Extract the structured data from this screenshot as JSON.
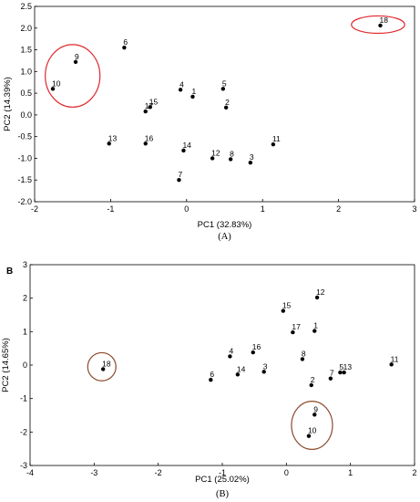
{
  "chart_data": [
    {
      "type": "scatter",
      "panel_letter": "",
      "caption": "(A)",
      "xlabel": "PC1 (32.83%)",
      "ylabel": "PC2 (14.39%)",
      "xlim": [
        -2,
        3
      ],
      "ylim": [
        -2.0,
        2.5
      ],
      "xticks": [
        -2,
        -1,
        0,
        1,
        2,
        3
      ],
      "yticks": [
        -2.0,
        -1.5,
        -1.0,
        -0.5,
        0.0,
        0.5,
        1.0,
        1.5,
        2.0,
        2.5
      ],
      "ytick_labels": [
        "-2.0",
        "-1.5",
        "-1.0",
        "-0.5",
        "0.0",
        "0.5",
        "1.0",
        "1.5",
        "2.0",
        "2.5"
      ],
      "grid": false,
      "marker_color": "#000000",
      "highlight_color": "#e0272c",
      "points": [
        {
          "label": "1",
          "x": 0.08,
          "y": 0.42
        },
        {
          "label": "2",
          "x": 0.52,
          "y": 0.17
        },
        {
          "label": "3",
          "x": 0.84,
          "y": -1.1
        },
        {
          "label": "4",
          "x": -0.08,
          "y": 0.58
        },
        {
          "label": "5",
          "x": 0.48,
          "y": 0.6
        },
        {
          "label": "6",
          "x": -0.82,
          "y": 1.55
        },
        {
          "label": "7",
          "x": -0.1,
          "y": -1.5
        },
        {
          "label": "8",
          "x": 0.58,
          "y": -1.02
        },
        {
          "label": "9",
          "x": -1.46,
          "y": 1.22
        },
        {
          "label": "10",
          "x": -1.76,
          "y": 0.6
        },
        {
          "label": "11",
          "x": 1.14,
          "y": -0.68
        },
        {
          "label": "12",
          "x": 0.34,
          "y": -1.0
        },
        {
          "label": "13",
          "x": -1.02,
          "y": -0.66
        },
        {
          "label": "14",
          "x": -0.04,
          "y": -0.82
        },
        {
          "label": "15",
          "x": -0.48,
          "y": 0.18
        },
        {
          "label": "16",
          "x": -0.54,
          "y": -0.66
        },
        {
          "label": "17",
          "x": -0.54,
          "y": 0.08
        },
        {
          "label": "18",
          "x": 2.55,
          "y": 2.06
        }
      ],
      "highlights": [
        {
          "cx": -1.5,
          "cy": 0.9,
          "rx": 0.36,
          "ry": 0.72
        },
        {
          "cx": 2.52,
          "cy": 2.08,
          "rx": 0.35,
          "ry": 0.2
        }
      ]
    },
    {
      "type": "scatter",
      "panel_letter": "B",
      "caption": "(B)",
      "xlabel": "PC1 (25.02%)",
      "ylabel": "PC2 (14.65%)",
      "xlim": [
        -4,
        2
      ],
      "ylim": [
        -3,
        3
      ],
      "xticks": [
        -4,
        -3,
        -2,
        -1,
        0,
        1,
        2
      ],
      "yticks": [
        -3,
        -2,
        -1,
        0,
        1,
        2,
        3
      ],
      "ytick_labels": [
        "-3",
        "-2",
        "-1",
        "0",
        "1",
        "2",
        "3"
      ],
      "grid": false,
      "marker_color": "#000000",
      "highlight_color": "#8b4a2b",
      "points": [
        {
          "label": "1",
          "x": 0.44,
          "y": 1.02
        },
        {
          "label": "2",
          "x": 0.39,
          "y": -0.6
        },
        {
          "label": "3",
          "x": -0.35,
          "y": -0.2
        },
        {
          "label": "4",
          "x": -0.88,
          "y": 0.26
        },
        {
          "label": "5",
          "x": 0.84,
          "y": -0.22
        },
        {
          "label": "6",
          "x": -1.18,
          "y": -0.44
        },
        {
          "label": "7",
          "x": 0.69,
          "y": -0.4
        },
        {
          "label": "8",
          "x": 0.25,
          "y": 0.18
        },
        {
          "label": "9",
          "x": 0.44,
          "y": -1.48
        },
        {
          "label": "10",
          "x": 0.35,
          "y": -2.12
        },
        {
          "label": "11",
          "x": 1.64,
          "y": 0.02
        },
        {
          "label": "12",
          "x": 0.48,
          "y": 2.02
        },
        {
          "label": "13",
          "x": 0.9,
          "y": -0.22
        },
        {
          "label": "14",
          "x": -0.76,
          "y": -0.28
        },
        {
          "label": "15",
          "x": -0.05,
          "y": 1.62
        },
        {
          "label": "16",
          "x": -0.52,
          "y": 0.38
        },
        {
          "label": "17",
          "x": 0.1,
          "y": 0.98
        },
        {
          "label": "18",
          "x": -2.86,
          "y": -0.12
        }
      ],
      "highlights": [
        {
          "cx": -2.88,
          "cy": -0.05,
          "rx": 0.22,
          "ry": 0.42
        },
        {
          "cx": 0.4,
          "cy": -1.8,
          "rx": 0.32,
          "ry": 0.72
        }
      ]
    }
  ]
}
